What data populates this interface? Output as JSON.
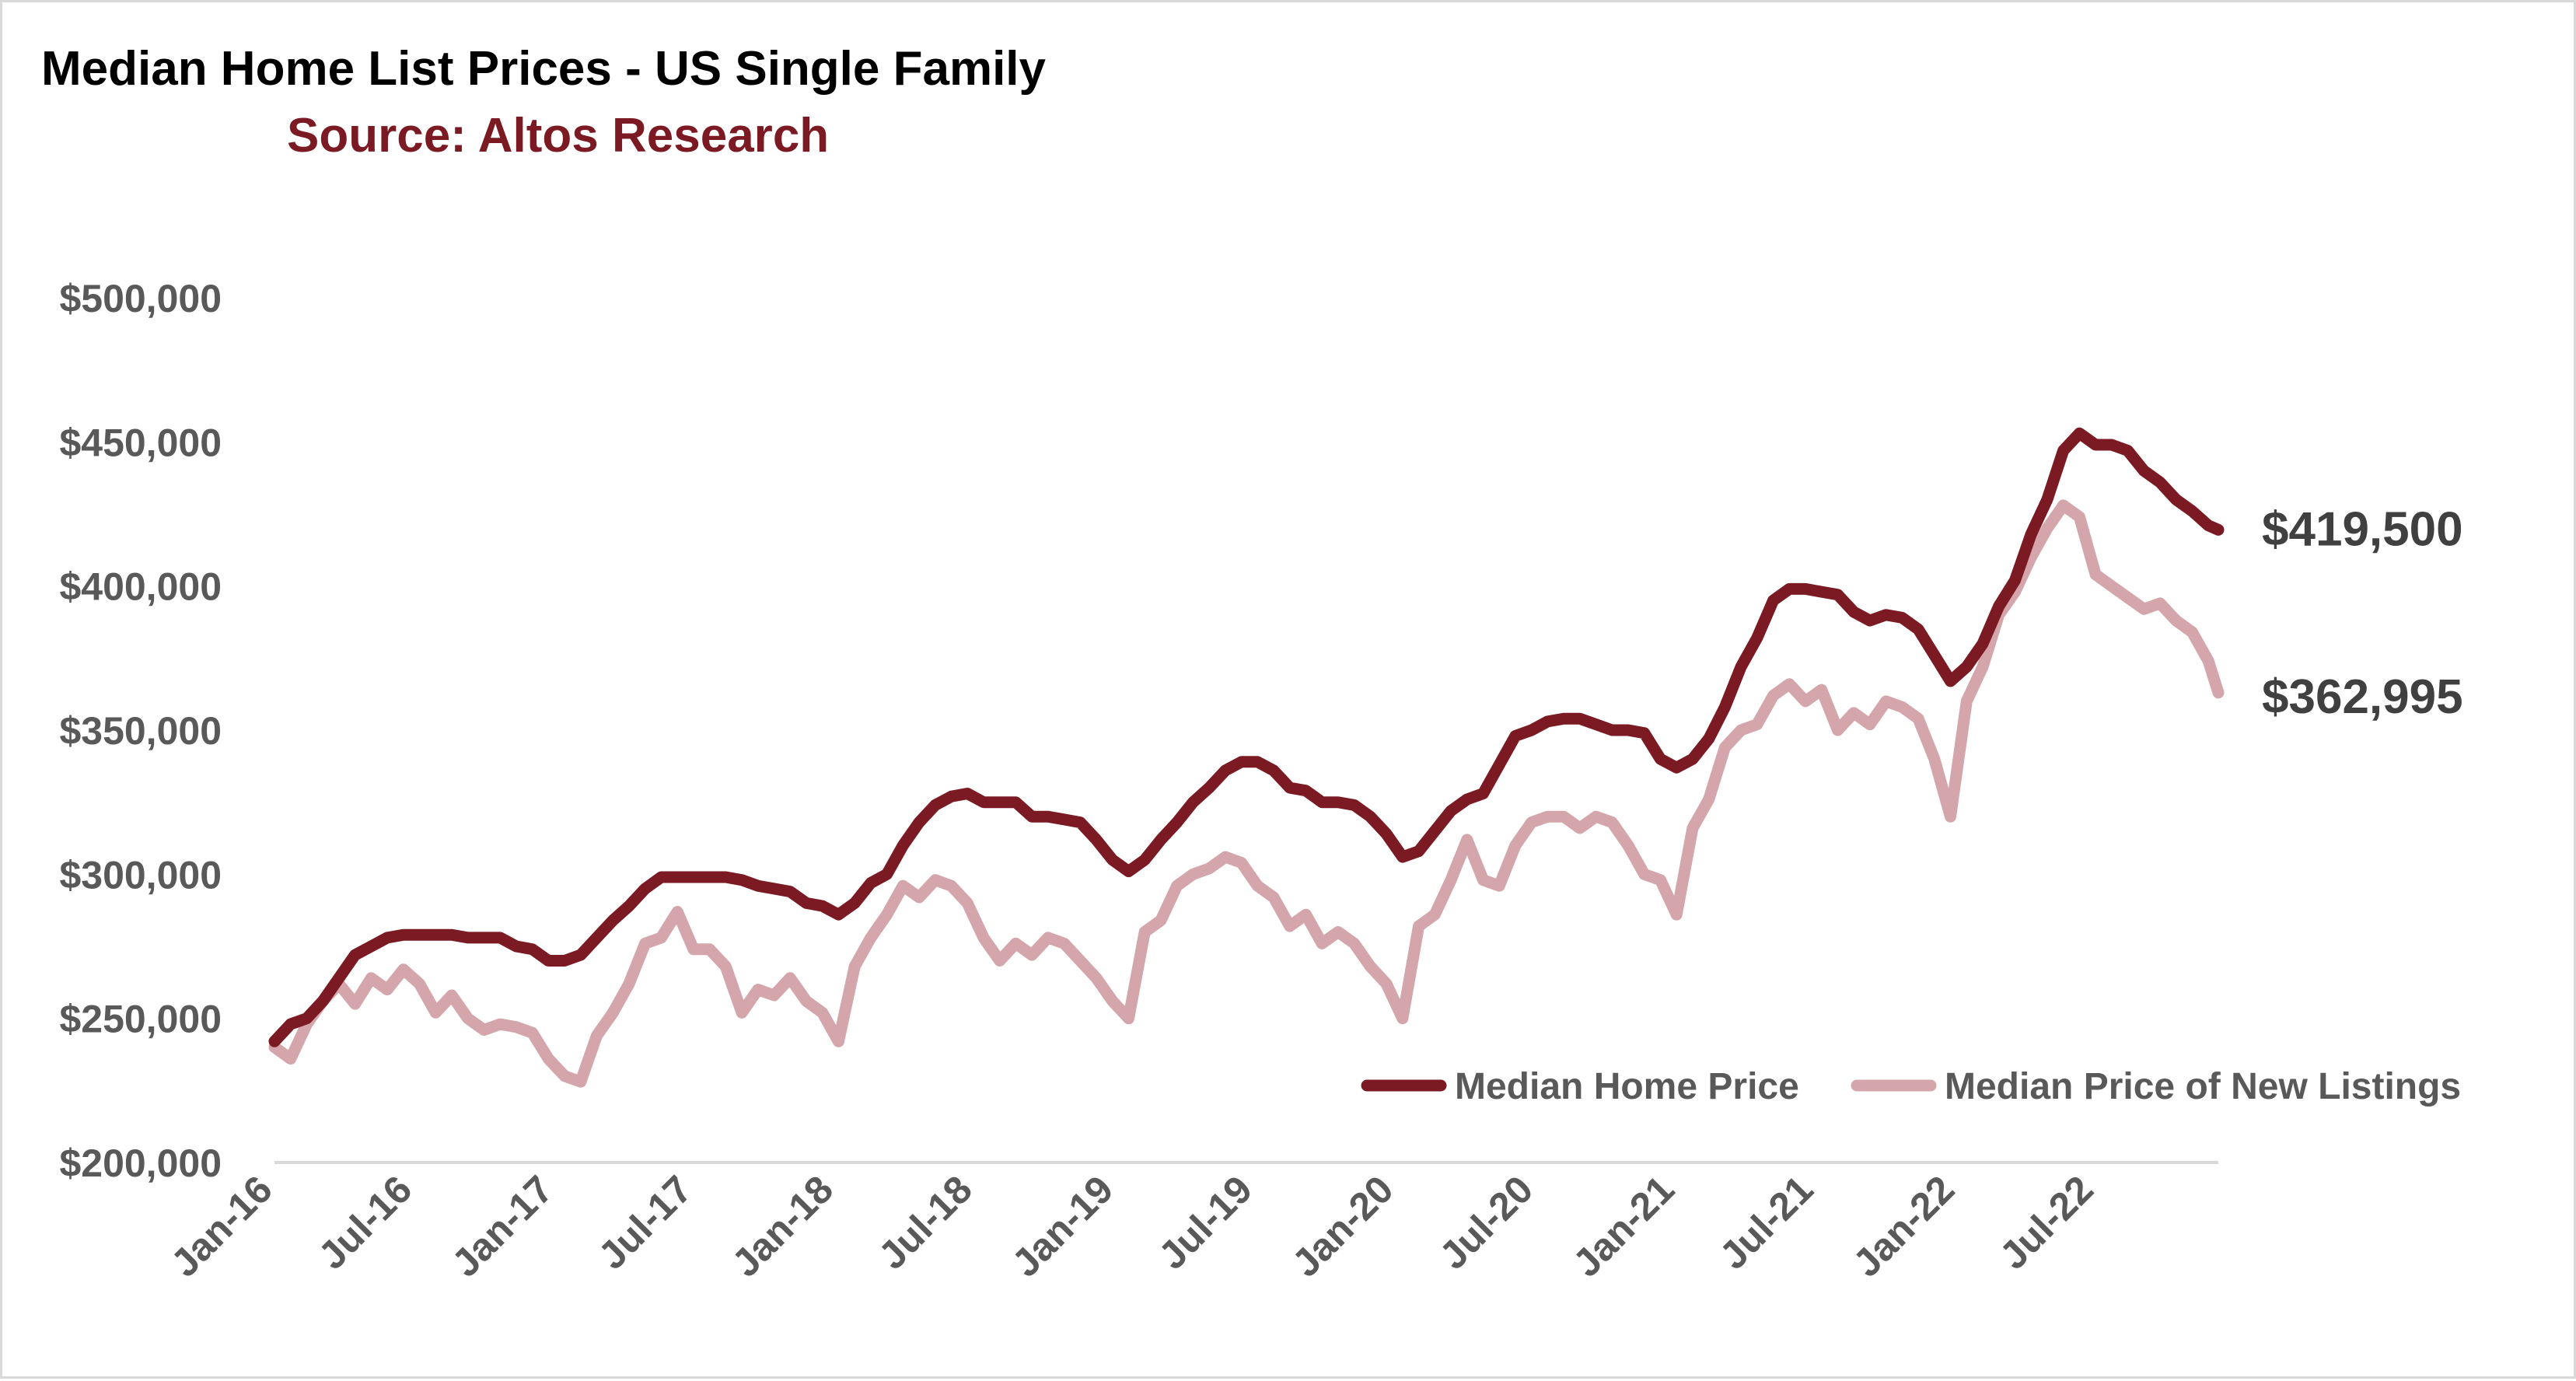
{
  "colors": {
    "median_home_price": "#7b1a22",
    "new_listings": "#d4a5aa",
    "title": "#000000",
    "subtitle": "#7b1a22",
    "axis_text": "#595959",
    "end_label": "#404040",
    "axis_line": "#d9d9d9"
  },
  "chart_data": {
    "type": "line",
    "title": "Median Home List Prices - US Single Family",
    "subtitle": "Source: Altos Research",
    "x_start": "2016-01-01",
    "x_end": "2022-12-08",
    "x_ticks": [
      "Jan-16",
      "Jul-16",
      "Jan-17",
      "Jul-17",
      "Jan-18",
      "Jul-18",
      "Jan-19",
      "Jul-19",
      "Jan-20",
      "Jul-20",
      "Jan-21",
      "Jul-21",
      "Jan-22",
      "Jul-22"
    ],
    "y_ticks": [
      "$200,000",
      "$250,000",
      "$300,000",
      "$350,000",
      "$400,000",
      "$450,000",
      "$500,000"
    ],
    "ylim": [
      200000,
      500000
    ],
    "grid": false,
    "legend_position": "bottom-right",
    "series": [
      {
        "name": "Median Home Price",
        "end_label": "$419,500",
        "points": [
          [
            "2016-01-01",
            242000
          ],
          [
            "2016-01-22",
            248000
          ],
          [
            "2016-02-12",
            250000
          ],
          [
            "2016-03-04",
            256000
          ],
          [
            "2016-03-25",
            264000
          ],
          [
            "2016-04-15",
            272000
          ],
          [
            "2016-05-06",
            275000
          ],
          [
            "2016-05-27",
            278000
          ],
          [
            "2016-06-17",
            279000
          ],
          [
            "2016-07-08",
            279000
          ],
          [
            "2016-07-29",
            279000
          ],
          [
            "2016-08-19",
            279000
          ],
          [
            "2016-09-09",
            278000
          ],
          [
            "2016-09-30",
            278000
          ],
          [
            "2016-10-21",
            278000
          ],
          [
            "2016-11-11",
            275000
          ],
          [
            "2016-12-02",
            274000
          ],
          [
            "2016-12-23",
            270000
          ],
          [
            "2017-01-13",
            270000
          ],
          [
            "2017-02-03",
            272000
          ],
          [
            "2017-02-24",
            278000
          ],
          [
            "2017-03-17",
            284000
          ],
          [
            "2017-04-07",
            289000
          ],
          [
            "2017-04-28",
            295000
          ],
          [
            "2017-05-19",
            299000
          ],
          [
            "2017-06-09",
            299000
          ],
          [
            "2017-06-30",
            299000
          ],
          [
            "2017-07-21",
            299000
          ],
          [
            "2017-08-11",
            299000
          ],
          [
            "2017-09-01",
            298000
          ],
          [
            "2017-09-22",
            296000
          ],
          [
            "2017-10-13",
            295000
          ],
          [
            "2017-11-03",
            294000
          ],
          [
            "2017-11-24",
            290000
          ],
          [
            "2017-12-15",
            289000
          ],
          [
            "2018-01-05",
            286000
          ],
          [
            "2018-01-26",
            290000
          ],
          [
            "2018-02-16",
            297000
          ],
          [
            "2018-03-09",
            300000
          ],
          [
            "2018-03-30",
            310000
          ],
          [
            "2018-04-20",
            318000
          ],
          [
            "2018-05-11",
            324000
          ],
          [
            "2018-06-01",
            327000
          ],
          [
            "2018-06-22",
            328000
          ],
          [
            "2018-07-13",
            325000
          ],
          [
            "2018-08-03",
            325000
          ],
          [
            "2018-08-24",
            325000
          ],
          [
            "2018-09-14",
            320000
          ],
          [
            "2018-10-05",
            320000
          ],
          [
            "2018-10-26",
            319000
          ],
          [
            "2018-11-16",
            318000
          ],
          [
            "2018-12-07",
            312000
          ],
          [
            "2018-12-28",
            305000
          ],
          [
            "2019-01-18",
            301000
          ],
          [
            "2019-02-08",
            305000
          ],
          [
            "2019-03-01",
            312000
          ],
          [
            "2019-03-22",
            318000
          ],
          [
            "2019-04-12",
            325000
          ],
          [
            "2019-05-03",
            330000
          ],
          [
            "2019-05-24",
            336000
          ],
          [
            "2019-06-14",
            339000
          ],
          [
            "2019-07-05",
            339000
          ],
          [
            "2019-07-26",
            336000
          ],
          [
            "2019-08-16",
            330000
          ],
          [
            "2019-09-06",
            329000
          ],
          [
            "2019-09-27",
            325000
          ],
          [
            "2019-10-18",
            325000
          ],
          [
            "2019-11-08",
            324000
          ],
          [
            "2019-11-29",
            320000
          ],
          [
            "2019-12-20",
            314000
          ],
          [
            "2020-01-10",
            306000
          ],
          [
            "2020-01-31",
            308000
          ],
          [
            "2020-02-21",
            315000
          ],
          [
            "2020-03-13",
            322000
          ],
          [
            "2020-04-03",
            326000
          ],
          [
            "2020-04-24",
            328000
          ],
          [
            "2020-05-15",
            338000
          ],
          [
            "2020-06-05",
            348000
          ],
          [
            "2020-06-26",
            350000
          ],
          [
            "2020-07-17",
            353000
          ],
          [
            "2020-08-07",
            354000
          ],
          [
            "2020-08-28",
            354000
          ],
          [
            "2020-09-18",
            352000
          ],
          [
            "2020-10-09",
            350000
          ],
          [
            "2020-10-30",
            350000
          ],
          [
            "2020-11-20",
            349000
          ],
          [
            "2020-12-11",
            340000
          ],
          [
            "2021-01-01",
            337000
          ],
          [
            "2021-01-22",
            340000
          ],
          [
            "2021-02-12",
            347000
          ],
          [
            "2021-03-05",
            358000
          ],
          [
            "2021-03-26",
            372000
          ],
          [
            "2021-04-16",
            382000
          ],
          [
            "2021-05-07",
            395000
          ],
          [
            "2021-05-28",
            399000
          ],
          [
            "2021-06-18",
            399000
          ],
          [
            "2021-07-09",
            398000
          ],
          [
            "2021-07-30",
            397000
          ],
          [
            "2021-08-20",
            391000
          ],
          [
            "2021-09-10",
            388000
          ],
          [
            "2021-10-01",
            390000
          ],
          [
            "2021-10-22",
            389000
          ],
          [
            "2021-11-12",
            385000
          ],
          [
            "2021-12-03",
            376000
          ],
          [
            "2021-12-24",
            367000
          ],
          [
            "2022-01-14",
            372000
          ],
          [
            "2022-02-04",
            380000
          ],
          [
            "2022-02-25",
            393000
          ],
          [
            "2022-03-18",
            402000
          ],
          [
            "2022-04-08",
            418000
          ],
          [
            "2022-04-29",
            430000
          ],
          [
            "2022-05-20",
            447000
          ],
          [
            "2022-06-10",
            453000
          ],
          [
            "2022-07-01",
            449000
          ],
          [
            "2022-07-22",
            449000
          ],
          [
            "2022-08-12",
            447000
          ],
          [
            "2022-09-02",
            440000
          ],
          [
            "2022-09-23",
            436000
          ],
          [
            "2022-10-14",
            430000
          ],
          [
            "2022-11-04",
            426000
          ],
          [
            "2022-11-25",
            421000
          ],
          [
            "2022-12-08",
            419500
          ]
        ]
      },
      {
        "name": "Median Price of New Listings",
        "end_label": "$362,995",
        "points": [
          [
            "2016-01-01",
            240000
          ],
          [
            "2016-01-22",
            236000
          ],
          [
            "2016-02-12",
            248000
          ],
          [
            "2016-03-04",
            256000
          ],
          [
            "2016-03-25",
            262000
          ],
          [
            "2016-04-15",
            255000
          ],
          [
            "2016-05-06",
            264000
          ],
          [
            "2016-05-27",
            260000
          ],
          [
            "2016-06-17",
            267000
          ],
          [
            "2016-07-08",
            262000
          ],
          [
            "2016-07-29",
            252000
          ],
          [
            "2016-08-19",
            258000
          ],
          [
            "2016-09-09",
            250000
          ],
          [
            "2016-09-30",
            246000
          ],
          [
            "2016-10-21",
            248000
          ],
          [
            "2016-11-11",
            247000
          ],
          [
            "2016-12-02",
            245000
          ],
          [
            "2016-12-23",
            236000
          ],
          [
            "2017-01-13",
            230000
          ],
          [
            "2017-02-03",
            228000
          ],
          [
            "2017-02-24",
            244000
          ],
          [
            "2017-03-17",
            252000
          ],
          [
            "2017-04-07",
            262000
          ],
          [
            "2017-04-28",
            276000
          ],
          [
            "2017-05-19",
            278000
          ],
          [
            "2017-06-09",
            287000
          ],
          [
            "2017-06-30",
            274000
          ],
          [
            "2017-07-21",
            274000
          ],
          [
            "2017-08-11",
            268000
          ],
          [
            "2017-09-01",
            252000
          ],
          [
            "2017-09-22",
            260000
          ],
          [
            "2017-10-13",
            258000
          ],
          [
            "2017-11-03",
            264000
          ],
          [
            "2017-11-24",
            256000
          ],
          [
            "2017-12-15",
            252000
          ],
          [
            "2018-01-05",
            242000
          ],
          [
            "2018-01-26",
            268000
          ],
          [
            "2018-02-16",
            278000
          ],
          [
            "2018-03-09",
            286000
          ],
          [
            "2018-03-30",
            296000
          ],
          [
            "2018-04-20",
            292000
          ],
          [
            "2018-05-11",
            298000
          ],
          [
            "2018-06-01",
            296000
          ],
          [
            "2018-06-22",
            290000
          ],
          [
            "2018-07-13",
            278000
          ],
          [
            "2018-08-03",
            270000
          ],
          [
            "2018-08-24",
            276000
          ],
          [
            "2018-09-14",
            272000
          ],
          [
            "2018-10-05",
            278000
          ],
          [
            "2018-10-26",
            276000
          ],
          [
            "2018-11-16",
            270000
          ],
          [
            "2018-12-07",
            264000
          ],
          [
            "2018-12-28",
            256000
          ],
          [
            "2019-01-18",
            250000
          ],
          [
            "2019-02-08",
            280000
          ],
          [
            "2019-03-01",
            284000
          ],
          [
            "2019-03-22",
            296000
          ],
          [
            "2019-04-12",
            300000
          ],
          [
            "2019-05-03",
            302000
          ],
          [
            "2019-05-24",
            306000
          ],
          [
            "2019-06-14",
            304000
          ],
          [
            "2019-07-05",
            296000
          ],
          [
            "2019-07-26",
            292000
          ],
          [
            "2019-08-16",
            282000
          ],
          [
            "2019-09-06",
            286000
          ],
          [
            "2019-09-27",
            276000
          ],
          [
            "2019-10-18",
            280000
          ],
          [
            "2019-11-08",
            276000
          ],
          [
            "2019-11-29",
            268000
          ],
          [
            "2019-12-20",
            262000
          ],
          [
            "2020-01-10",
            250000
          ],
          [
            "2020-01-31",
            282000
          ],
          [
            "2020-02-21",
            286000
          ],
          [
            "2020-03-13",
            298000
          ],
          [
            "2020-04-03",
            312000
          ],
          [
            "2020-04-24",
            298000
          ],
          [
            "2020-05-15",
            296000
          ],
          [
            "2020-06-05",
            310000
          ],
          [
            "2020-06-26",
            318000
          ],
          [
            "2020-07-17",
            320000
          ],
          [
            "2020-08-07",
            320000
          ],
          [
            "2020-08-28",
            316000
          ],
          [
            "2020-09-18",
            320000
          ],
          [
            "2020-10-09",
            318000
          ],
          [
            "2020-10-30",
            310000
          ],
          [
            "2020-11-20",
            300000
          ],
          [
            "2020-12-11",
            298000
          ],
          [
            "2021-01-01",
            286000
          ],
          [
            "2021-01-22",
            316000
          ],
          [
            "2021-02-12",
            326000
          ],
          [
            "2021-03-05",
            344000
          ],
          [
            "2021-03-26",
            350000
          ],
          [
            "2021-04-16",
            352000
          ],
          [
            "2021-05-07",
            362000
          ],
          [
            "2021-05-28",
            366000
          ],
          [
            "2021-06-18",
            360000
          ],
          [
            "2021-07-09",
            364000
          ],
          [
            "2021-07-30",
            350000
          ],
          [
            "2021-08-20",
            356000
          ],
          [
            "2021-09-10",
            352000
          ],
          [
            "2021-10-01",
            360000
          ],
          [
            "2021-10-22",
            358000
          ],
          [
            "2021-11-12",
            354000
          ],
          [
            "2021-12-03",
            340000
          ],
          [
            "2021-12-24",
            320000
          ],
          [
            "2022-01-14",
            360000
          ],
          [
            "2022-02-04",
            372000
          ],
          [
            "2022-02-25",
            390000
          ],
          [
            "2022-03-18",
            398000
          ],
          [
            "2022-04-08",
            410000
          ],
          [
            "2022-04-29",
            420000
          ],
          [
            "2022-05-20",
            428000
          ],
          [
            "2022-06-10",
            424000
          ],
          [
            "2022-07-01",
            404000
          ],
          [
            "2022-07-22",
            400000
          ],
          [
            "2022-08-12",
            396000
          ],
          [
            "2022-09-02",
            392000
          ],
          [
            "2022-09-23",
            394000
          ],
          [
            "2022-10-14",
            388000
          ],
          [
            "2022-11-04",
            384000
          ],
          [
            "2022-11-25",
            374000
          ],
          [
            "2022-12-08",
            362995
          ]
        ]
      }
    ]
  }
}
